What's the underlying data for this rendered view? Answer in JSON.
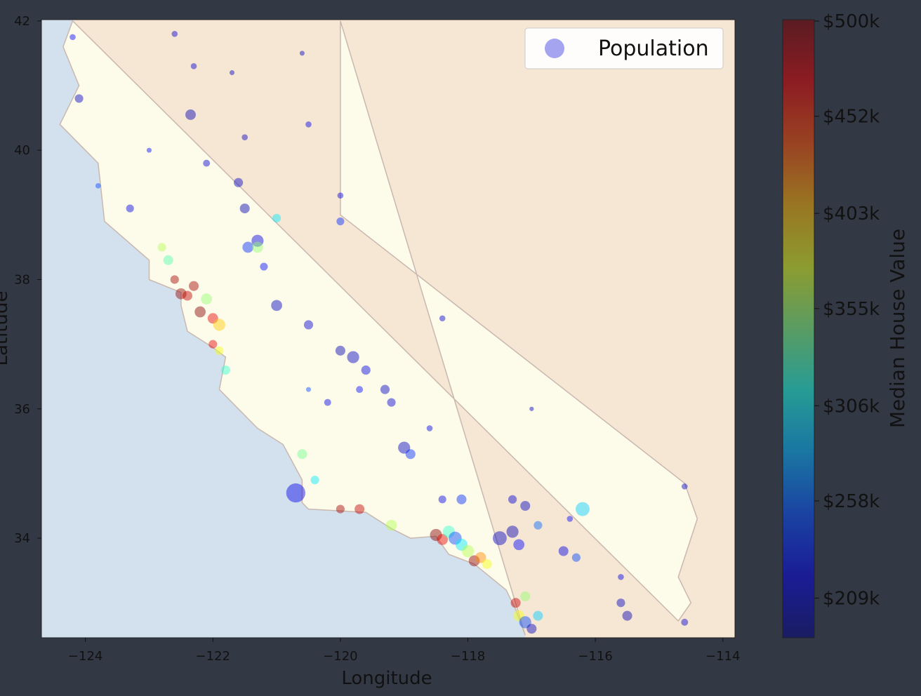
{
  "chart_data": {
    "type": "scatter",
    "xlabel": "Longitude",
    "ylabel": "Latitude",
    "colorbar_label": "Median House Value",
    "legend": "Population",
    "legend_corner": "upper right",
    "legend_color": "#1f1fe0",
    "colormap": "jet",
    "xlim": [
      -124.69,
      -113.81
    ],
    "ylim": [
      32.46,
      42.02
    ],
    "xticks": [
      {
        "value": -124,
        "label": "−124"
      },
      {
        "value": -122,
        "label": "−122"
      },
      {
        "value": -120,
        "label": "−120"
      },
      {
        "value": -118,
        "label": "−118"
      },
      {
        "value": -116,
        "label": "−116"
      },
      {
        "value": -114,
        "label": "−114"
      }
    ],
    "yticks": [
      34,
      36,
      38,
      40,
      42
    ],
    "clim": [
      189000,
      500700
    ],
    "cticks": [
      {
        "value": 209000,
        "label": "$209k"
      },
      {
        "value": 258000,
        "label": "$258k"
      },
      {
        "value": 306000,
        "label": "$306k"
      },
      {
        "value": 355000,
        "label": "$355k"
      },
      {
        "value": 403000,
        "label": "$403k"
      },
      {
        "value": 452000,
        "label": "$452k"
      },
      {
        "value": 500000,
        "label": "$500k"
      }
    ],
    "x": [
      -124.1,
      -124.2,
      -123.8,
      -123.3,
      -122.6,
      -122.35,
      -122.1,
      -121.6,
      -121.5,
      -121.3,
      -121.45,
      -121.0,
      -121.2,
      -122.5,
      -122.4,
      -122.2,
      -122.0,
      -121.9,
      -122.3,
      -122.1,
      -122.7,
      -122.8,
      -121.9,
      -121.8,
      -122.0,
      -122.6,
      -121.0,
      -120.5,
      -120.0,
      -119.8,
      -119.6,
      -119.3,
      -119.2,
      -119.0,
      -118.9,
      -120.2,
      -119.7,
      -120.6,
      -120.7,
      -120.4,
      -120.0,
      -119.7,
      -119.2,
      -118.5,
      -118.4,
      -118.3,
      -118.2,
      -118.1,
      -118.0,
      -117.9,
      -117.8,
      -117.7,
      -117.5,
      -117.3,
      -117.2,
      -116.9,
      -116.5,
      -116.3,
      -117.1,
      -117.3,
      -118.1,
      -118.4,
      -117.2,
      -117.1,
      -117.0,
      -117.25,
      -117.1,
      -116.9,
      -115.5,
      -115.6,
      -114.6,
      -114.6,
      -116.4,
      -115.6,
      -120.6,
      -122.3,
      -121.5,
      -120.5,
      -123.0,
      -121.7,
      -120.0,
      -120.0,
      -118.4,
      -117.0,
      -118.6,
      -116.2,
      -121.3,
      -120.5
    ],
    "y": [
      40.8,
      41.75,
      39.45,
      39.1,
      41.8,
      40.55,
      39.8,
      39.5,
      39.1,
      38.6,
      38.5,
      38.95,
      38.2,
      37.78,
      37.75,
      37.5,
      37.4,
      37.3,
      37.9,
      37.7,
      38.3,
      38.5,
      36.9,
      36.6,
      37.0,
      38.0,
      37.6,
      37.3,
      36.9,
      36.8,
      36.6,
      36.3,
      36.1,
      35.4,
      35.3,
      36.1,
      36.3,
      35.3,
      34.7,
      34.9,
      34.45,
      34.45,
      34.2,
      34.05,
      33.98,
      34.1,
      34.0,
      33.9,
      33.8,
      33.65,
      33.7,
      33.6,
      34.0,
      34.1,
      33.9,
      34.2,
      33.8,
      33.7,
      34.5,
      34.6,
      34.6,
      34.6,
      32.8,
      32.7,
      32.6,
      33.0,
      33.1,
      32.8,
      32.8,
      33.0,
      32.7,
      34.8,
      34.3,
      33.4,
      41.5,
      41.3,
      40.2,
      40.4,
      40.0,
      41.2,
      38.9,
      39.3,
      37.4,
      36.0,
      35.7,
      34.45,
      38.5,
      36.3
    ],
    "sizes": [
      3000,
      1500,
      1200,
      2500,
      1500,
      4500,
      2000,
      3500,
      4000,
      6000,
      5000,
      3000,
      2500,
      5000,
      4000,
      5000,
      4500,
      6000,
      4000,
      5000,
      4000,
      3000,
      3000,
      3500,
      3000,
      3000,
      5000,
      3500,
      4000,
      6000,
      3500,
      3500,
      3000,
      6000,
      4000,
      2000,
      2000,
      4000,
      15000,
      3000,
      3000,
      4000,
      5000,
      6000,
      5000,
      6000,
      7000,
      6000,
      6000,
      5000,
      5000,
      4000,
      8000,
      6000,
      5000,
      3000,
      4000,
      3000,
      4000,
      3000,
      4000,
      2500,
      5000,
      6000,
      4000,
      4000,
      4000,
      4000,
      4000,
      3000,
      2000,
      1500,
      1500,
      1500,
      1000,
      1500,
      1500,
      1500,
      1000,
      1000,
      2500,
      1500,
      1500,
      800,
      1500,
      8000,
      5000,
      1000
    ],
    "values": [
      210000,
      230000,
      250000,
      220000,
      215000,
      205000,
      215000,
      210000,
      205000,
      220000,
      240000,
      300000,
      230000,
      495000,
      480000,
      500000,
      470000,
      400000,
      490000,
      350000,
      330000,
      360000,
      380000,
      320000,
      470000,
      490000,
      210000,
      215000,
      205000,
      210000,
      220000,
      210000,
      215000,
      210000,
      240000,
      220000,
      230000,
      340000,
      220000,
      300000,
      490000,
      480000,
      360000,
      500000,
      470000,
      320000,
      250000,
      300000,
      360000,
      495000,
      420000,
      380000,
      210000,
      205000,
      230000,
      260000,
      220000,
      250000,
      210000,
      215000,
      240000,
      220000,
      380000,
      250000,
      210000,
      480000,
      350000,
      290000,
      205000,
      210000,
      215000,
      210000,
      230000,
      220000,
      210000,
      215000,
      210000,
      220000,
      230000,
      210000,
      240000,
      220000,
      215000,
      210000,
      220000,
      290000,
      350000,
      250000
    ]
  }
}
